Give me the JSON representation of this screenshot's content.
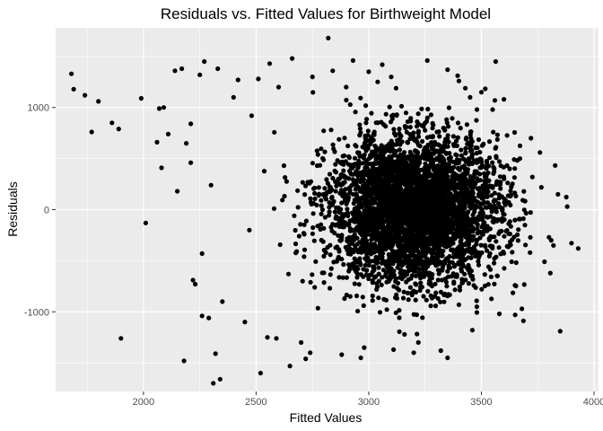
{
  "chart_data": {
    "type": "scatter",
    "title": "Residuals vs. Fitted Values for Birthweight Model",
    "xlabel": "Fitted Values",
    "ylabel": "Residuals",
    "xlim": [
      1610,
      4020
    ],
    "ylim": [
      -1780,
      1780
    ],
    "xticks": [
      2000,
      2500,
      3000,
      3500,
      4000
    ],
    "xtick_labels": [
      "2000",
      "2500",
      "3000",
      "3500",
      "4000"
    ],
    "yticks": [
      -1000,
      0,
      1000
    ],
    "ytick_labels": [
      "-1000",
      "0",
      "1000"
    ],
    "grid": true,
    "background": "#EBEBEB",
    "grid_color": "#FFFFFF",
    "point_color": "#000000",
    "points": [
      [
        1680,
        1330
      ],
      [
        1690,
        1180
      ],
      [
        1740,
        1120
      ],
      [
        1770,
        760
      ],
      [
        1800,
        1060
      ],
      [
        1860,
        850
      ],
      [
        1890,
        790
      ],
      [
        1900,
        -1260
      ],
      [
        1990,
        1090
      ],
      [
        2010,
        -130
      ],
      [
        2060,
        660
      ],
      [
        2070,
        990
      ],
      [
        2090,
        1000
      ],
      [
        2080,
        410
      ],
      [
        2110,
        740
      ],
      [
        2150,
        180
      ],
      [
        2140,
        1360
      ],
      [
        2170,
        1380
      ],
      [
        2180,
        -1480
      ],
      [
        2190,
        650
      ],
      [
        2210,
        460
      ],
      [
        2220,
        -690
      ],
      [
        2230,
        -730
      ],
      [
        2210,
        840
      ],
      [
        2250,
        1320
      ],
      [
        2260,
        -1040
      ],
      [
        2270,
        1450
      ],
      [
        2290,
        -1060
      ],
      [
        2300,
        240
      ],
      [
        2310,
        -1700
      ],
      [
        2320,
        -1410
      ],
      [
        2330,
        1380
      ],
      [
        2340,
        -1660
      ],
      [
        2260,
        -430
      ],
      [
        2420,
        1270
      ],
      [
        2470,
        -200
      ],
      [
        2480,
        920
      ],
      [
        2510,
        1280
      ],
      [
        2520,
        -1600
      ],
      [
        2560,
        1430
      ],
      [
        2590,
        -1260
      ],
      [
        2650,
        -1530
      ],
      [
        2660,
        1480
      ],
      [
        2720,
        -1460
      ],
      [
        2740,
        -1400
      ],
      [
        2820,
        1680
      ],
      [
        2840,
        1360
      ],
      [
        2880,
        -1420
      ],
      [
        2930,
        1460
      ],
      [
        3060,
        1420
      ],
      [
        3110,
        -1370
      ],
      [
        3200,
        -1400
      ],
      [
        3260,
        1460
      ],
      [
        3320,
        -1380
      ],
      [
        3350,
        1370
      ],
      [
        3400,
        1260
      ],
      [
        3450,
        1100
      ],
      [
        3500,
        1150
      ],
      [
        3560,
        1070
      ],
      [
        3600,
        1080
      ],
      [
        3650,
        -1030
      ],
      [
        3680,
        -970
      ],
      [
        3720,
        700
      ],
      [
        3760,
        560
      ],
      [
        3780,
        -510
      ],
      [
        3800,
        -270
      ],
      [
        3810,
        -300
      ],
      [
        3820,
        -350
      ],
      [
        3840,
        150
      ],
      [
        3850,
        -1190
      ],
      [
        3930,
        -380
      ],
      [
        3550,
        980
      ],
      [
        3580,
        -1020
      ],
      [
        3480,
        -950
      ],
      [
        3460,
        -1180
      ],
      [
        3350,
        -1450
      ],
      [
        3220,
        -1300
      ],
      [
        3100,
        1300
      ],
      [
        3000,
        1350
      ],
      [
        2980,
        -1350
      ],
      [
        2900,
        1200
      ],
      [
        2750,
        1300
      ],
      [
        2700,
        -1300
      ],
      [
        2600,
        1200
      ],
      [
        2550,
        -1250
      ],
      [
        2450,
        -1100
      ],
      [
        2400,
        1100
      ],
      [
        2350,
        -900
      ]
    ],
    "cluster": {
      "center": [
        3200,
        0
      ],
      "spread": [
        190,
        360
      ],
      "count": 4100,
      "seed": 7
    }
  }
}
